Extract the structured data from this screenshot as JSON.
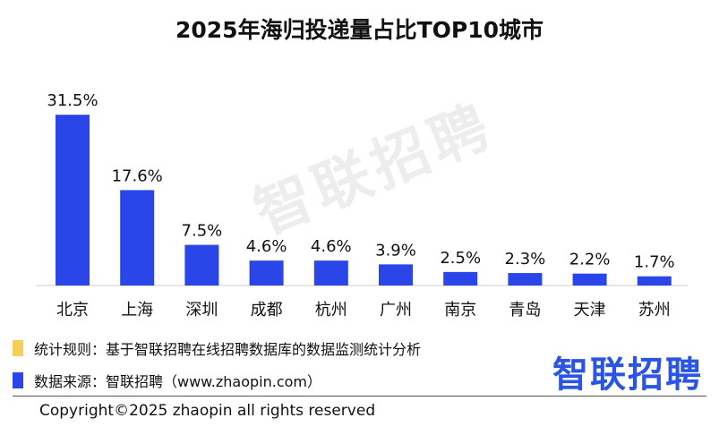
{
  "title": "2025年海归投递量占比TOP10城市",
  "watermark": "智联招聘",
  "chart_data": {
    "type": "bar",
    "title": "2025年海归投递量占比TOP10城市",
    "categories": [
      "北京",
      "上海",
      "深圳",
      "成都",
      "杭州",
      "广州",
      "南京",
      "青岛",
      "天津",
      "苏州"
    ],
    "values": [
      31.5,
      17.6,
      7.5,
      4.6,
      4.6,
      3.9,
      2.5,
      2.3,
      2.2,
      1.7
    ],
    "value_labels": [
      "31.5%",
      "17.6%",
      "7.5%",
      "4.6%",
      "4.6%",
      "3.9%",
      "2.5%",
      "2.3%",
      "2.2%",
      "1.7%"
    ],
    "unit": "%",
    "bar_color": "#2a45e8",
    "ylim": [
      0,
      35
    ],
    "grid": false,
    "xlabel": "",
    "ylabel": ""
  },
  "notes": [
    {
      "text": "统计规则：基于智联招聘在线招聘数据库的数据监测统计分析",
      "color": "#f6cf5a"
    },
    {
      "text": "数据来源：智联招聘（www.zhaopin.com）",
      "color": "#2a45e8"
    }
  ],
  "logo": "智联招聘",
  "copyright": "Copyright©2025 zhaopin all rights reserved"
}
